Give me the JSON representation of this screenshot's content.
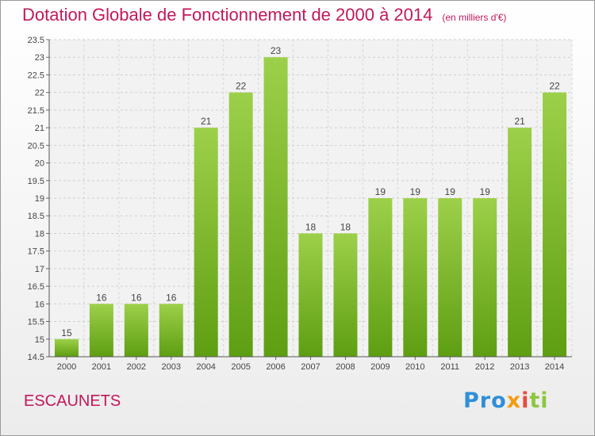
{
  "header": {
    "title": "Dotation Globale de Fonctionnement de 2000 à 2014",
    "subtitle": "(en milliers d'€)"
  },
  "footer": {
    "commune": "ESCAUNETS",
    "logo": [
      "Pro",
      "x",
      "i",
      "ti"
    ]
  },
  "colors": {
    "title": "#c2185b",
    "bar_light": "#9dd04a",
    "bar_dark": "#5e9e12"
  },
  "chart_data": {
    "type": "bar",
    "title": "Dotation Globale de Fonctionnement de 2000 à 2014",
    "subtitle": "(en milliers d'€)",
    "categories": [
      "2000",
      "2001",
      "2002",
      "2003",
      "2004",
      "2005",
      "2006",
      "2007",
      "2008",
      "2009",
      "2010",
      "2011",
      "2012",
      "2013",
      "2014"
    ],
    "values": [
      15,
      16,
      16,
      16,
      21,
      22,
      23,
      18,
      18,
      19,
      19,
      19,
      19,
      21,
      22
    ],
    "ylim": [
      14.5,
      23.5
    ],
    "yticks": [
      "14.5",
      "15",
      "15.5",
      "16",
      "16.5",
      "17",
      "17.5",
      "18",
      "18.5",
      "19",
      "19.5",
      "20",
      "20.5",
      "21",
      "21.5",
      "22",
      "22.5",
      "23",
      "23.5"
    ],
    "grid": true,
    "xlabel": "",
    "ylabel": ""
  }
}
